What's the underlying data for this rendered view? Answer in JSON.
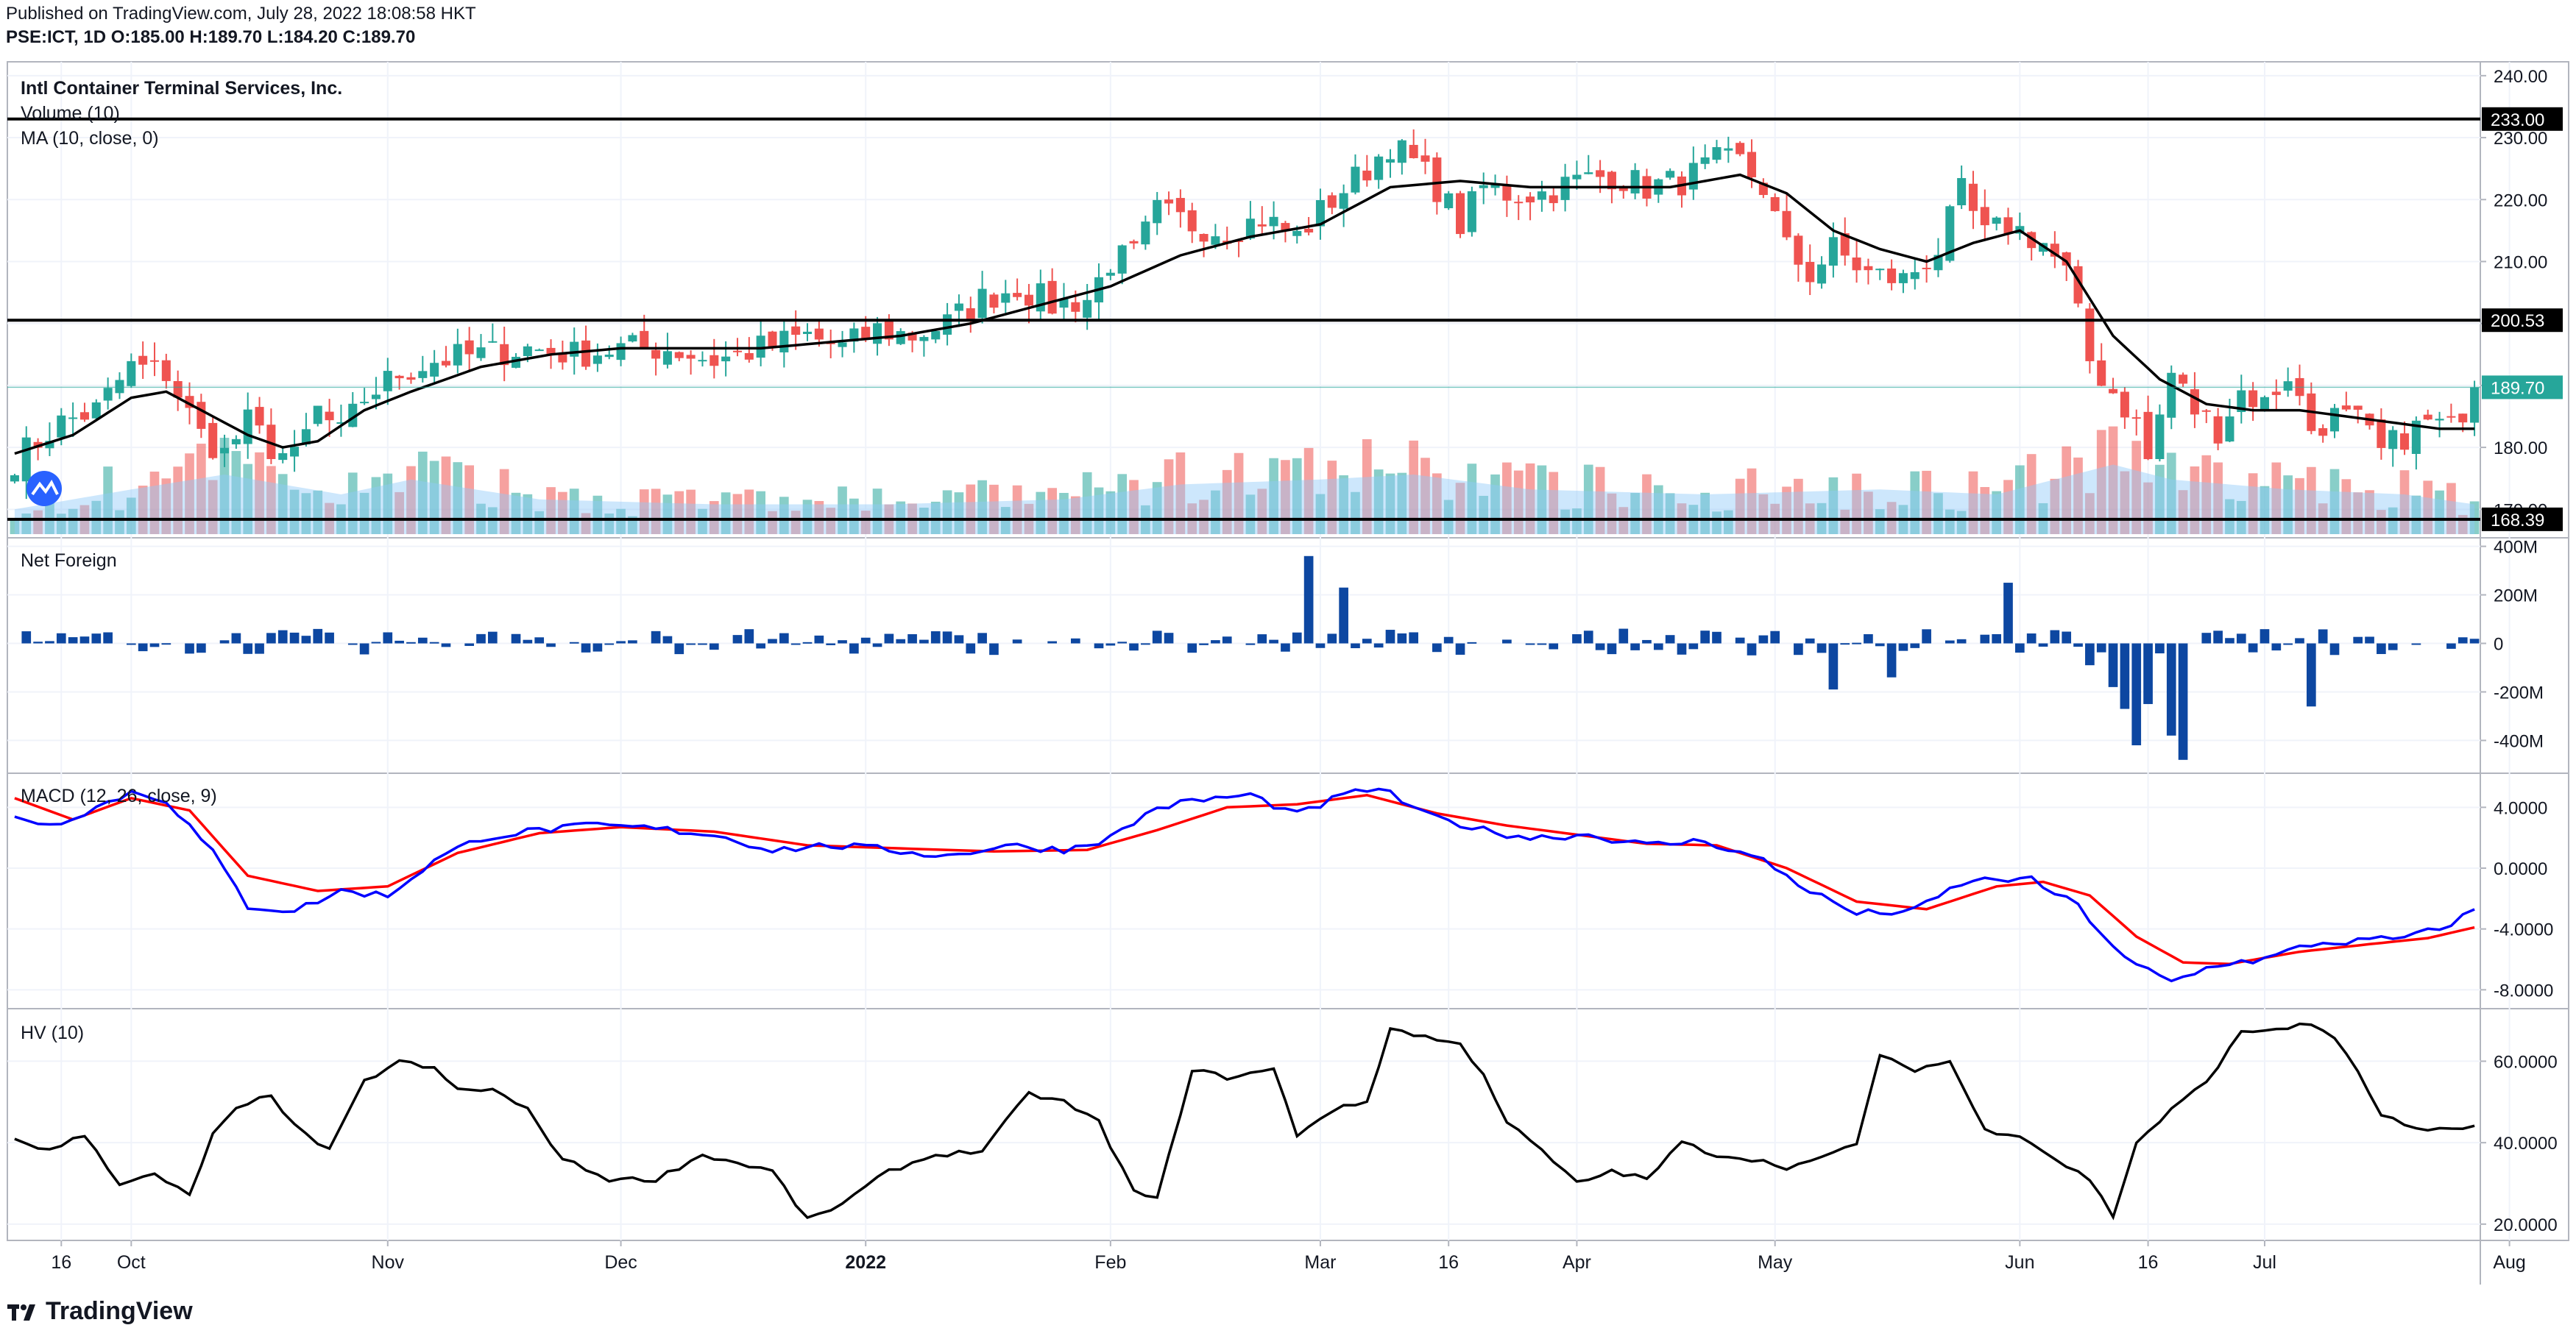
{
  "header": {
    "published": "Published on TradingView.com, July 28, 2022 18:08:58 HKT",
    "symbol_line": "PSE:ICT, 1D  O:185.00 H:189.70 L:184.20 C:189.70"
  },
  "branding": {
    "logo_icon": "tradingview-logo-icon",
    "name": "TradingView"
  },
  "colors": {
    "up": "#26a69a",
    "down": "#ef5350",
    "ma": "#000000",
    "net_foreign": "#0d47a1",
    "macd": "#0000ff",
    "signal": "#ff0000",
    "hv": "#000000",
    "vol_up": "#26a69a",
    "vol_down": "#ef5350",
    "vol_ma": "#90caf9"
  },
  "x_axis": {
    "ticks": [
      {
        "label": "16",
        "bold": false,
        "i": 4
      },
      {
        "label": "Oct",
        "bold": false,
        "i": 10
      },
      {
        "label": "Nov",
        "bold": false,
        "i": 32
      },
      {
        "label": "Dec",
        "bold": false,
        "i": 52
      },
      {
        "label": "2022",
        "bold": true,
        "i": 73
      },
      {
        "label": "Feb",
        "bold": false,
        "i": 94
      },
      {
        "label": "Mar",
        "bold": false,
        "i": 112
      },
      {
        "label": "16",
        "bold": false,
        "i": 123
      },
      {
        "label": "Apr",
        "bold": false,
        "i": 134
      },
      {
        "label": "May",
        "bold": false,
        "i": 151
      },
      {
        "label": "Jun",
        "bold": false,
        "i": 172
      },
      {
        "label": "16",
        "bold": false,
        "i": 183
      },
      {
        "label": "Jul",
        "bold": false,
        "i": 193
      },
      {
        "label": "Aug",
        "bold": false,
        "i": 214
      }
    ]
  },
  "chart_data": [
    {
      "type": "candlestick",
      "title": "Intl Container Terminal Services, Inc.",
      "indicators": [
        "Volume (10)",
        "MA (10, close, 0)"
      ],
      "ylim": [
        166,
        242
      ],
      "y_ticks": [
        "240.00",
        "230.00",
        "220.00",
        "210.00",
        "200.00",
        "190.00",
        "180.00",
        "170.00"
      ],
      "horizontal_lines": [
        {
          "value": 233.0,
          "label": "233.00"
        },
        {
          "value": 200.53,
          "label": "200.53"
        },
        {
          "value": 168.39,
          "label": "168.39"
        }
      ],
      "last_price": {
        "value": 189.7,
        "label": "189.70"
      },
      "anchors": [
        [
          0,
          178
        ],
        [
          4,
          184
        ],
        [
          7,
          186
        ],
        [
          10,
          193
        ],
        [
          13,
          192
        ],
        [
          16,
          182
        ],
        [
          18,
          179
        ],
        [
          20,
          184
        ],
        [
          22,
          180
        ],
        [
          24,
          178
        ],
        [
          26,
          186
        ],
        [
          28,
          182
        ],
        [
          30,
          188
        ],
        [
          33,
          192
        ],
        [
          36,
          194
        ],
        [
          40,
          195
        ],
        [
          44,
          196
        ],
        [
          48,
          195
        ],
        [
          52,
          196
        ],
        [
          56,
          196
        ],
        [
          60,
          194
        ],
        [
          64,
          196
        ],
        [
          68,
          198
        ],
        [
          71,
          196
        ],
        [
          74,
          199
        ],
        [
          77,
          198
        ],
        [
          80,
          200
        ],
        [
          83,
          204
        ],
        [
          86,
          206
        ],
        [
          89,
          203
        ],
        [
          92,
          204
        ],
        [
          94,
          210
        ],
        [
          96,
          211
        ],
        [
          98,
          218
        ],
        [
          101,
          216
        ],
        [
          104,
          215
        ],
        [
          107,
          217
        ],
        [
          110,
          214
        ],
        [
          113,
          220
        ],
        [
          116,
          225
        ],
        [
          118,
          229
        ],
        [
          120,
          226
        ],
        [
          122,
          222
        ],
        [
          124,
          216
        ],
        [
          126,
          222
        ],
        [
          128,
          221
        ],
        [
          131,
          221
        ],
        [
          134,
          223
        ],
        [
          137,
          224
        ],
        [
          140,
          222
        ],
        [
          143,
          223
        ],
        [
          146,
          226
        ],
        [
          148,
          226
        ],
        [
          150,
          222
        ],
        [
          152,
          212
        ],
        [
          154,
          208
        ],
        [
          156,
          212
        ],
        [
          159,
          208
        ],
        [
          162,
          207
        ],
        [
          165,
          212
        ],
        [
          167,
          221
        ],
        [
          169,
          214
        ],
        [
          171,
          216
        ],
        [
          174,
          213
        ],
        [
          176,
          208
        ],
        [
          178,
          194
        ],
        [
          180,
          189
        ],
        [
          182,
          184
        ],
        [
          183,
          178
        ],
        [
          185,
          192
        ],
        [
          187,
          186
        ],
        [
          189,
          183
        ],
        [
          191,
          189
        ],
        [
          193,
          187
        ],
        [
          195,
          192
        ],
        [
          197,
          183
        ],
        [
          199,
          185
        ],
        [
          201,
          184
        ],
        [
          203,
          179
        ],
        [
          205,
          182
        ],
        [
          207,
          184
        ],
        [
          209,
          183
        ],
        [
          211,
          189.7
        ]
      ],
      "ma_anchors": [
        [
          0,
          179
        ],
        [
          5,
          182
        ],
        [
          10,
          188
        ],
        [
          13,
          189
        ],
        [
          16,
          186
        ],
        [
          18,
          184
        ],
        [
          20,
          182
        ],
        [
          23,
          180
        ],
        [
          26,
          181
        ],
        [
          30,
          186
        ],
        [
          34,
          189
        ],
        [
          40,
          193
        ],
        [
          46,
          195
        ],
        [
          52,
          196
        ],
        [
          58,
          196
        ],
        [
          64,
          196
        ],
        [
          70,
          197
        ],
        [
          76,
          198
        ],
        [
          82,
          200
        ],
        [
          88,
          203
        ],
        [
          94,
          206
        ],
        [
          100,
          211
        ],
        [
          106,
          214
        ],
        [
          112,
          216
        ],
        [
          118,
          222
        ],
        [
          124,
          223
        ],
        [
          130,
          222
        ],
        [
          136,
          222
        ],
        [
          142,
          222
        ],
        [
          148,
          224
        ],
        [
          152,
          221
        ],
        [
          156,
          215
        ],
        [
          160,
          212
        ],
        [
          164,
          210
        ],
        [
          168,
          213
        ],
        [
          172,
          215
        ],
        [
          176,
          210
        ],
        [
          180,
          198
        ],
        [
          184,
          191
        ],
        [
          188,
          187
        ],
        [
          192,
          186
        ],
        [
          196,
          186
        ],
        [
          200,
          185
        ],
        [
          204,
          184
        ],
        [
          208,
          183
        ],
        [
          211,
          183
        ]
      ],
      "volume_anchors": [
        [
          0,
          0.25
        ],
        [
          10,
          0.45
        ],
        [
          18,
          0.6
        ],
        [
          28,
          0.4
        ],
        [
          34,
          0.55
        ],
        [
          45,
          0.35
        ],
        [
          60,
          0.3
        ],
        [
          75,
          0.3
        ],
        [
          90,
          0.35
        ],
        [
          100,
          0.5
        ],
        [
          112,
          0.55
        ],
        [
          120,
          0.6
        ],
        [
          130,
          0.45
        ],
        [
          145,
          0.4
        ],
        [
          160,
          0.45
        ],
        [
          170,
          0.4
        ],
        [
          180,
          0.7
        ],
        [
          185,
          0.55
        ],
        [
          195,
          0.45
        ],
        [
          205,
          0.4
        ],
        [
          211,
          0.3
        ]
      ]
    },
    {
      "type": "bar",
      "title": "Net Foreign",
      "ylim": [
        -520,
        420
      ],
      "y_ticks": [
        "400M",
        "200M",
        "0",
        "-200M",
        "-400M"
      ],
      "y_tick_values": [
        400,
        200,
        0,
        -200,
        -400
      ],
      "spikes": [
        [
          111,
          360
        ],
        [
          114,
          230
        ],
        [
          171,
          250
        ],
        [
          178,
          -90
        ],
        [
          180,
          -180
        ],
        [
          181,
          -270
        ],
        [
          182,
          -420
        ],
        [
          183,
          -250
        ],
        [
          185,
          -380
        ],
        [
          186,
          -480
        ],
        [
          197,
          -260
        ],
        [
          156,
          -190
        ],
        [
          161,
          -140
        ]
      ]
    },
    {
      "type": "line",
      "title": "MACD (12, 26, close, 9)",
      "ylim": [
        -9,
        6
      ],
      "y_ticks": [
        "4.0000",
        "0.0000",
        "-4.0000",
        "-8.0000"
      ],
      "y_tick_values": [
        4,
        0,
        -4,
        -8
      ],
      "macd_anchors": [
        [
          0,
          3.5
        ],
        [
          3,
          2.8
        ],
        [
          7,
          4.0
        ],
        [
          10,
          5.0
        ],
        [
          13,
          4.5
        ],
        [
          17,
          1.0
        ],
        [
          20,
          -2.5
        ],
        [
          24,
          -2.8
        ],
        [
          28,
          -1.5
        ],
        [
          32,
          -1.8
        ],
        [
          36,
          0.5
        ],
        [
          40,
          2.0
        ],
        [
          45,
          2.5
        ],
        [
          50,
          2.8
        ],
        [
          55,
          2.6
        ],
        [
          60,
          2.2
        ],
        [
          65,
          1.2
        ],
        [
          70,
          1.5
        ],
        [
          75,
          1.2
        ],
        [
          80,
          0.8
        ],
        [
          85,
          1.5
        ],
        [
          90,
          1.2
        ],
        [
          94,
          2.0
        ],
        [
          98,
          4.0
        ],
        [
          102,
          4.5
        ],
        [
          106,
          4.8
        ],
        [
          110,
          3.5
        ],
        [
          114,
          4.8
        ],
        [
          117,
          5.3
        ],
        [
          121,
          3.5
        ],
        [
          126,
          2.5
        ],
        [
          130,
          2.0
        ],
        [
          135,
          2.2
        ],
        [
          140,
          1.5
        ],
        [
          145,
          1.8
        ],
        [
          150,
          0.5
        ],
        [
          154,
          -1.5
        ],
        [
          158,
          -3.0
        ],
        [
          163,
          -2.8
        ],
        [
          167,
          -1.0
        ],
        [
          170,
          -0.7
        ],
        [
          173,
          -0.8
        ],
        [
          177,
          -2.5
        ],
        [
          181,
          -6.0
        ],
        [
          185,
          -7.5
        ],
        [
          189,
          -6.3
        ],
        [
          193,
          -6.0
        ],
        [
          197,
          -5.0
        ],
        [
          201,
          -4.8
        ],
        [
          205,
          -4.6
        ],
        [
          208,
          -4.0
        ],
        [
          211,
          -2.8
        ]
      ],
      "signal_anchors": [
        [
          0,
          4.6
        ],
        [
          5,
          3.2
        ],
        [
          10,
          4.6
        ],
        [
          15,
          3.8
        ],
        [
          20,
          -0.5
        ],
        [
          26,
          -1.5
        ],
        [
          32,
          -1.2
        ],
        [
          38,
          1.0
        ],
        [
          45,
          2.3
        ],
        [
          52,
          2.7
        ],
        [
          60,
          2.4
        ],
        [
          68,
          1.5
        ],
        [
          76,
          1.3
        ],
        [
          84,
          1.1
        ],
        [
          92,
          1.2
        ],
        [
          98,
          2.5
        ],
        [
          104,
          4.0
        ],
        [
          110,
          4.2
        ],
        [
          116,
          4.8
        ],
        [
          122,
          3.6
        ],
        [
          128,
          2.8
        ],
        [
          134,
          2.2
        ],
        [
          140,
          1.6
        ],
        [
          146,
          1.5
        ],
        [
          152,
          0.0
        ],
        [
          158,
          -2.2
        ],
        [
          164,
          -2.7
        ],
        [
          170,
          -1.2
        ],
        [
          174,
          -0.9
        ],
        [
          178,
          -1.8
        ],
        [
          182,
          -4.5
        ],
        [
          186,
          -6.2
        ],
        [
          190,
          -6.3
        ],
        [
          196,
          -5.5
        ],
        [
          202,
          -5.0
        ],
        [
          207,
          -4.6
        ],
        [
          211,
          -3.9
        ]
      ]
    },
    {
      "type": "line",
      "title": "HV (10)",
      "ylim": [
        16,
        72
      ],
      "y_ticks": [
        "60.0000",
        "40.0000",
        "20.0000"
      ],
      "y_tick_values": [
        60,
        40,
        20
      ],
      "hv_anchors": [
        [
          0,
          41
        ],
        [
          3,
          38
        ],
        [
          6,
          42
        ],
        [
          9,
          30
        ],
        [
          12,
          32
        ],
        [
          15,
          27
        ],
        [
          17,
          42
        ],
        [
          19,
          48
        ],
        [
          22,
          52
        ],
        [
          24,
          44
        ],
        [
          27,
          38
        ],
        [
          30,
          55
        ],
        [
          33,
          60
        ],
        [
          36,
          58
        ],
        [
          38,
          53
        ],
        [
          41,
          53
        ],
        [
          44,
          48
        ],
        [
          47,
          36
        ],
        [
          51,
          31
        ],
        [
          55,
          31
        ],
        [
          59,
          37
        ],
        [
          62,
          35
        ],
        [
          65,
          33
        ],
        [
          68,
          21
        ],
        [
          71,
          25
        ],
        [
          75,
          33
        ],
        [
          79,
          37
        ],
        [
          83,
          38
        ],
        [
          87,
          52
        ],
        [
          90,
          50
        ],
        [
          93,
          45
        ],
        [
          96,
          28
        ],
        [
          98,
          26
        ],
        [
          101,
          58
        ],
        [
          104,
          56
        ],
        [
          108,
          58
        ],
        [
          110,
          42
        ],
        [
          113,
          48
        ],
        [
          116,
          50
        ],
        [
          118,
          68
        ],
        [
          121,
          66
        ],
        [
          124,
          64
        ],
        [
          126,
          57
        ],
        [
          128,
          45
        ],
        [
          131,
          38
        ],
        [
          134,
          30
        ],
        [
          137,
          33
        ],
        [
          140,
          31
        ],
        [
          143,
          40
        ],
        [
          146,
          37
        ],
        [
          149,
          36
        ],
        [
          152,
          34
        ],
        [
          155,
          36
        ],
        [
          158,
          40
        ],
        [
          160,
          61
        ],
        [
          163,
          58
        ],
        [
          166,
          60
        ],
        [
          169,
          43
        ],
        [
          172,
          42
        ],
        [
          175,
          36
        ],
        [
          178,
          31
        ],
        [
          180,
          22
        ],
        [
          182,
          40
        ],
        [
          185,
          48
        ],
        [
          188,
          55
        ],
        [
          191,
          67
        ],
        [
          194,
          68
        ],
        [
          197,
          69
        ],
        [
          199,
          66
        ],
        [
          201,
          57
        ],
        [
          203,
          47
        ],
        [
          206,
          43
        ],
        [
          209,
          43
        ],
        [
          211,
          44
        ]
      ]
    }
  ]
}
